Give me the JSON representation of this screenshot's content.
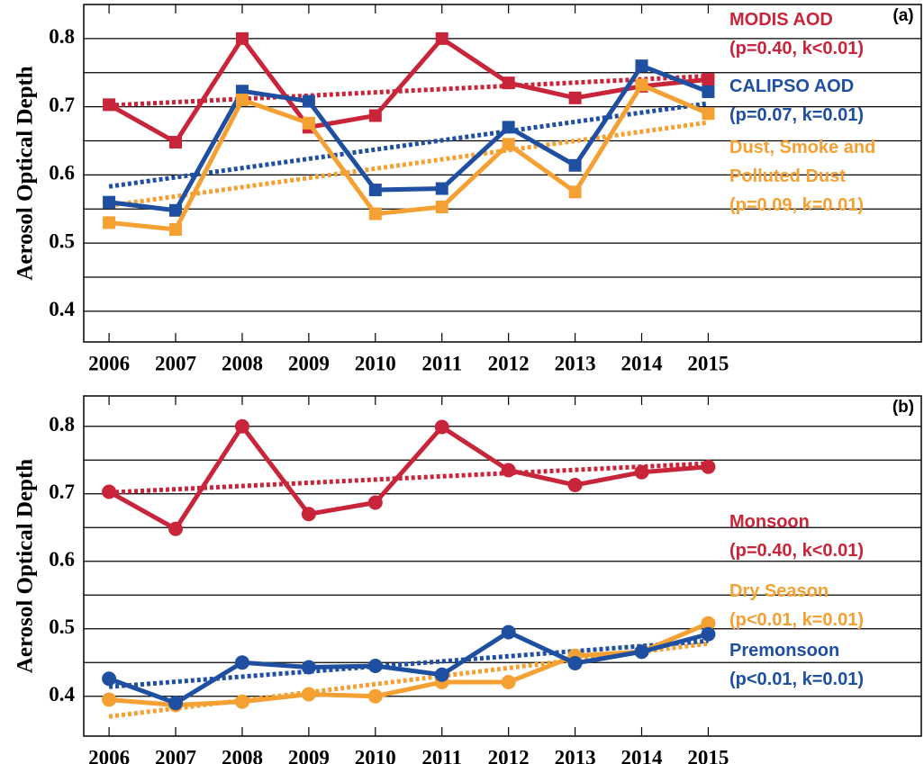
{
  "chart_data": [
    {
      "type": "line",
      "panel_label": "(a)",
      "y_label": "Aerosol Optical Depth",
      "x": [
        2006,
        2007,
        2008,
        2009,
        2010,
        2011,
        2012,
        2013,
        2014,
        2015
      ],
      "xlim": [
        2005.62,
        2018.2
      ],
      "xticks": [
        2006,
        2007,
        2008,
        2009,
        2010,
        2011,
        2012,
        2013,
        2014,
        2015
      ],
      "ylim": [
        0.355,
        0.85
      ],
      "yticks": [
        0.4,
        0.5,
        0.6,
        0.7,
        0.8
      ],
      "minor_yticks": [
        0.45,
        0.55,
        0.65,
        0.75
      ],
      "grid": true,
      "marker": "square",
      "series": [
        {
          "name": "MODIS AOD",
          "stats": "(p=0.40, k<0.01)",
          "color": "#c8253a",
          "values": [
            0.703,
            0.648,
            0.8,
            0.67,
            0.687,
            0.8,
            0.735,
            0.713,
            0.73,
            0.74
          ],
          "trend": [
            0.702,
            0.745
          ]
        },
        {
          "name": "CALIPSO AOD",
          "stats": "(p=0.07, k=0.01)",
          "color": "#1f4fa0",
          "values": [
            0.56,
            0.548,
            0.723,
            0.708,
            0.578,
            0.58,
            0.67,
            0.614,
            0.76,
            0.722
          ],
          "trend": [
            0.583,
            0.705
          ]
        },
        {
          "name": "Dust, Smoke and Polluted Dust",
          "stats": "(p=0.09, k=0.01)",
          "color": "#f5a033",
          "values": [
            0.53,
            0.52,
            0.71,
            0.676,
            0.543,
            0.553,
            0.645,
            0.575,
            0.732,
            0.69
          ],
          "trend": [
            0.555,
            0.677
          ]
        }
      ]
    },
    {
      "type": "line",
      "panel_label": "(b)",
      "y_label": "Aerosol Optical Depth",
      "x": [
        2006,
        2007,
        2008,
        2009,
        2010,
        2011,
        2012,
        2013,
        2014,
        2015
      ],
      "xlim": [
        2005.62,
        2018.2
      ],
      "xticks": [
        2006,
        2007,
        2008,
        2009,
        2010,
        2011,
        2012,
        2013,
        2014,
        2015
      ],
      "ylim": [
        0.341,
        0.845
      ],
      "yticks": [
        0.4,
        0.5,
        0.6,
        0.7,
        0.8
      ],
      "minor_yticks": [
        0.45,
        0.55,
        0.65,
        0.75
      ],
      "grid": true,
      "marker": "circle",
      "series": [
        {
          "name": "Monsoon",
          "stats": "(p=0.40, k<0.01)",
          "color": "#c8253a",
          "values": [
            0.703,
            0.648,
            0.8,
            0.67,
            0.687,
            0.799,
            0.735,
            0.713,
            0.732,
            0.74
          ],
          "trend": [
            0.702,
            0.745
          ]
        },
        {
          "name": "Dry Season",
          "stats": "(p<0.01, k=0.01)",
          "color": "#f5a033",
          "values": [
            0.395,
            0.387,
            0.392,
            0.403,
            0.4,
            0.421,
            0.421,
            0.46,
            0.466,
            0.508
          ],
          "trend": [
            0.37,
            0.478
          ]
        },
        {
          "name": "Premonsoon",
          "stats": "(p<0.01, k=0.01)",
          "color": "#1f4fa0",
          "values": [
            0.426,
            0.39,
            0.45,
            0.443,
            0.445,
            0.432,
            0.495,
            0.449,
            0.466,
            0.492
          ],
          "trend": [
            0.414,
            0.482
          ]
        }
      ]
    }
  ]
}
